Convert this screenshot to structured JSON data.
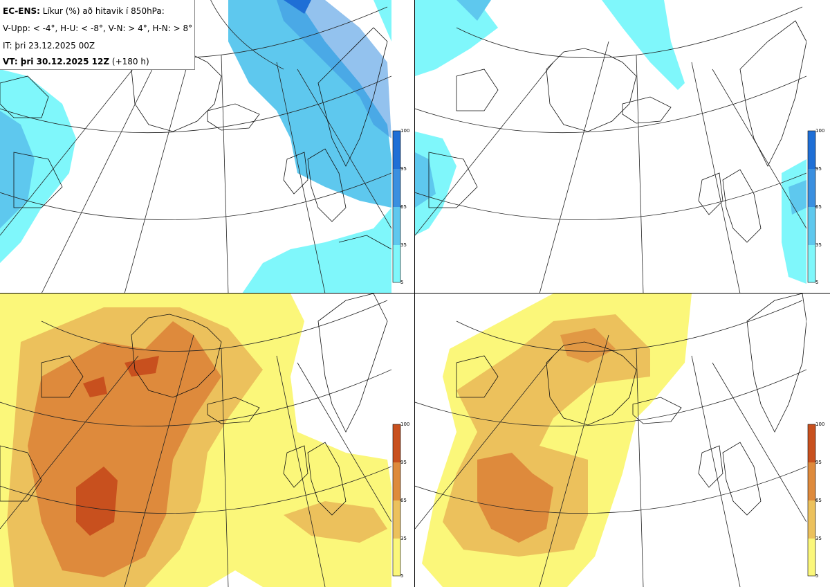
{
  "info": {
    "model": "EC-ENS:",
    "title": "Líkur (%) að hitavik í 850hPa:",
    "categories": "V-Upp: < -4°, H-U: < -8°, V-N: > 4°, H-N: > 8°",
    "initial_time": "IT: þri 23.12.2025 00Z",
    "valid_label": "VT: þri 30.12.2025 12Z",
    "lead": "(+180 h)"
  },
  "panels": [
    {
      "id": "top-left",
      "quantity": "prob T850 anomaly < -4",
      "palette": "cold"
    },
    {
      "id": "top-right",
      "quantity": "prob T850 anomaly < -8",
      "palette": "cold"
    },
    {
      "id": "bottom-left",
      "quantity": "prob T850 anomaly > 4",
      "palette": "warm"
    },
    {
      "id": "bottom-right",
      "quantity": "prob T850 anomaly > 8",
      "palette": "warm"
    }
  ],
  "colorbar": {
    "ticks": [
      "100",
      "95",
      "65",
      "35",
      "5"
    ],
    "cold_colors": [
      "#1f6fd6",
      "#3a8fe0",
      "#5ec8ee",
      "#7ff7fb"
    ],
    "warm_colors": [
      "#c8501e",
      "#de8a3c",
      "#ecc15c",
      "#fbf77a"
    ]
  }
}
